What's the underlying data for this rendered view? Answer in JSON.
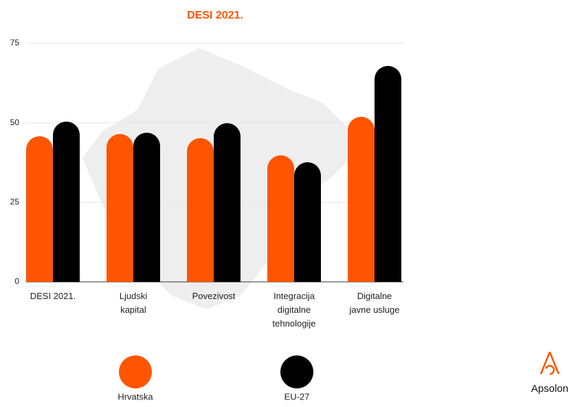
{
  "chart_data": {
    "type": "bar",
    "title": "DESI 2021.",
    "categories": [
      [
        "DESI 2021."
      ],
      [
        "Ljudski",
        "kapital"
      ],
      [
        "Povezivost"
      ],
      [
        "Integracija",
        "digitalne",
        "tehnologije"
      ],
      [
        "Digitalne",
        "javne usluge"
      ]
    ],
    "series": [
      {
        "name": "Hrvatska",
        "color": "#ff5500",
        "values": [
          45.8,
          46.5,
          45.2,
          39.8,
          51.9
        ]
      },
      {
        "name": "EU-27",
        "color": "#000000",
        "values": [
          50.4,
          46.9,
          49.9,
          37.6,
          67.9
        ]
      }
    ],
    "ylim": [
      0,
      75
    ],
    "yticks": [
      0,
      25,
      50,
      75
    ],
    "grid": true
  },
  "logo": "Apsolon"
}
